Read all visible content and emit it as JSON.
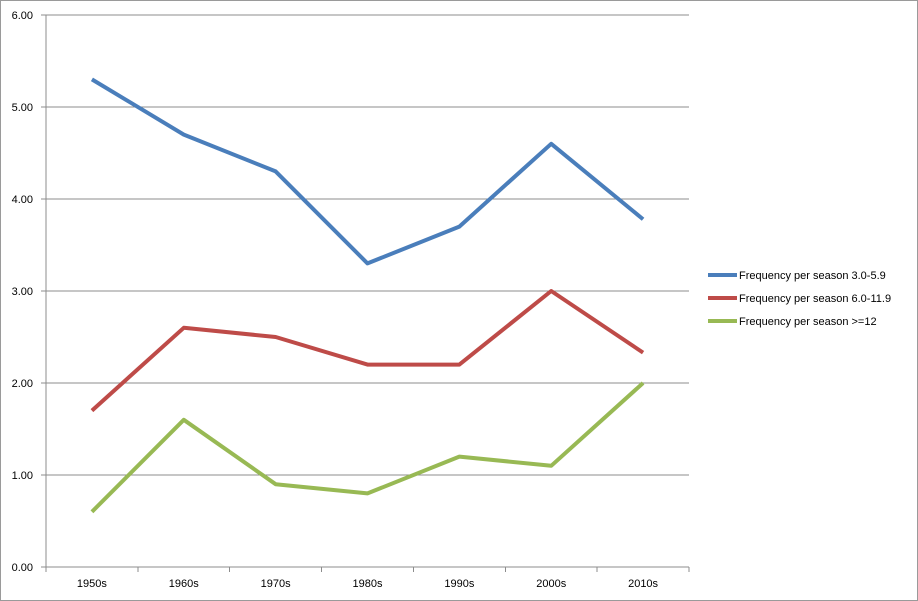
{
  "chart_data": {
    "type": "line",
    "title": "",
    "xlabel": "",
    "ylabel": "",
    "categories": [
      "1950s",
      "1960s",
      "1970s",
      "1980s",
      "1990s",
      "2000s",
      "2010s"
    ],
    "ylim": [
      0,
      6
    ],
    "ytick_values": [
      0,
      1,
      2,
      3,
      4,
      5,
      6
    ],
    "ytick_labels": [
      "0.00",
      "1.00",
      "2.00",
      "3.00",
      "4.00",
      "5.00",
      "6.00"
    ],
    "grid": "horizontal",
    "legend_position": "right",
    "series": [
      {
        "name": "Frequency per season 3.0-5.9",
        "color": "#4a7ebb",
        "values": [
          5.3,
          4.7,
          4.3,
          3.3,
          3.7,
          4.6,
          3.78
        ]
      },
      {
        "name": "Frequency per season 6.0-11.9",
        "color": "#be4b48",
        "values": [
          1.7,
          2.6,
          2.5,
          2.2,
          2.2,
          3.0,
          2.33
        ]
      },
      {
        "name": "Frequency per season >=12",
        "color": "#98b954",
        "values": [
          0.6,
          1.6,
          0.9,
          0.8,
          1.2,
          1.1,
          2.0
        ]
      }
    ]
  }
}
